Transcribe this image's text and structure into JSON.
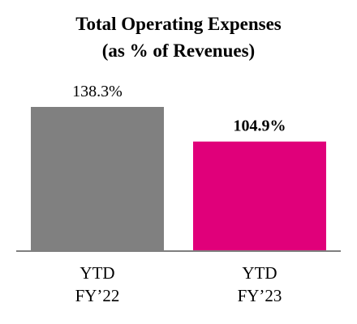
{
  "chart_data": {
    "type": "bar",
    "title": [
      "Total Operating Expenses",
      "(as % of Revenues)"
    ],
    "categories": [
      {
        "line1": "YTD",
        "line2": "FY’22"
      },
      {
        "line1": "YTD",
        "line2": "FY’23"
      }
    ],
    "values": [
      138.3,
      104.9
    ],
    "data_labels": [
      "138.3%",
      "104.9%"
    ],
    "data_label_bold": [
      false,
      true
    ],
    "colors": [
      "#808080",
      "#e0007a"
    ],
    "ylim": [
      0,
      160
    ],
    "grid": false,
    "legend": "none"
  }
}
